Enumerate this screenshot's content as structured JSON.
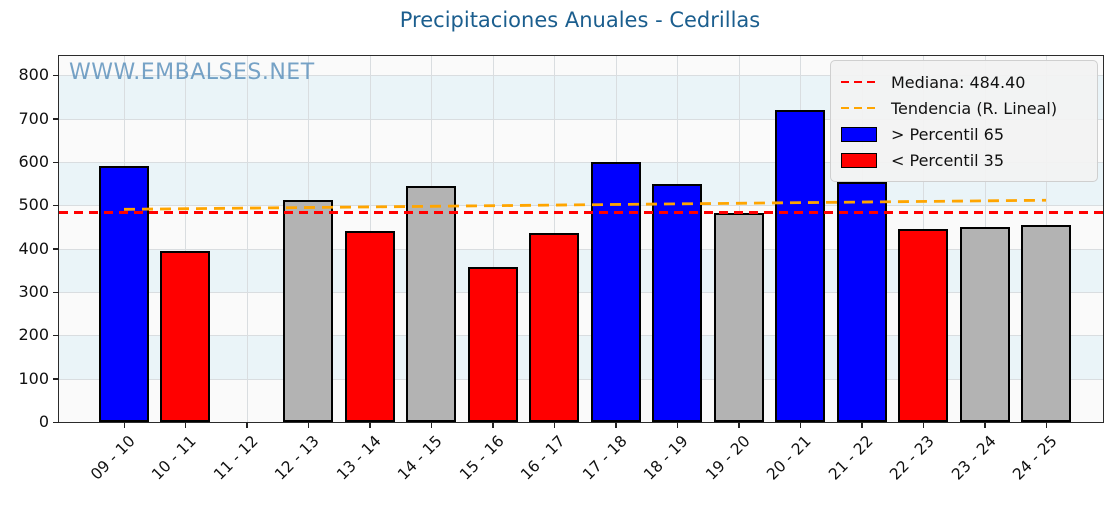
{
  "title": "Precipitaciones Anuales - Cedrillas",
  "watermark": "WWW.EMBALSES.NET",
  "legend": {
    "median_label": "Mediana: 484.40",
    "trend_label": "Tendencia (R. Lineal)",
    "p65_label": "> Percentil 65",
    "p35_label": "< Percentil 35"
  },
  "colors": {
    "title": "#1b5e8e",
    "watermark": "#5f93bd",
    "blue_bar": "#0000ff",
    "red_bar": "#ff0000",
    "gray_bar": "#b3b3b3",
    "bar_edge": "#000000",
    "median_line": "#ff0000",
    "trend_line": "#ffa500",
    "band_light": "#fafafa",
    "band_cyan": "#eaf4f8",
    "grid": "#d9dde0"
  },
  "chart_data": {
    "type": "bar",
    "title": "Precipitaciones Anuales - Cedrillas",
    "categories": [
      "09 - 10",
      "10 - 11",
      "11 - 12",
      "12 - 13",
      "13 - 14",
      "14 - 15",
      "15 - 16",
      "16 - 17",
      "17 - 18",
      "18 - 19",
      "19 - 20",
      "20 - 21",
      "21 - 22",
      "22 - 23",
      "23 - 24",
      "24 - 25"
    ],
    "values": [
      590,
      395,
      null,
      513,
      440,
      545,
      357,
      437,
      600,
      550,
      482,
      720,
      554,
      446,
      450,
      456
    ],
    "bar_classes": [
      "p65",
      "p35",
      null,
      "mid",
      "p35",
      "mid",
      "p35",
      "p35",
      "p65",
      "p65",
      "mid",
      "p65",
      "p65",
      "p35",
      "mid",
      "mid"
    ],
    "series_legend": {
      "p65": "> Percentil 65 (blue)",
      "p35": "< Percentil 35 (red)",
      "mid": "between percentiles (gray)"
    },
    "median": 484.4,
    "trend": {
      "start_value": 491,
      "end_value": 512
    },
    "ylabel": "",
    "xlabel": "",
    "ylim": [
      0,
      845
    ],
    "yticks": [
      0,
      100,
      200,
      300,
      400,
      500,
      600,
      700,
      800
    ],
    "grid": true,
    "legend_position": "top-right"
  }
}
